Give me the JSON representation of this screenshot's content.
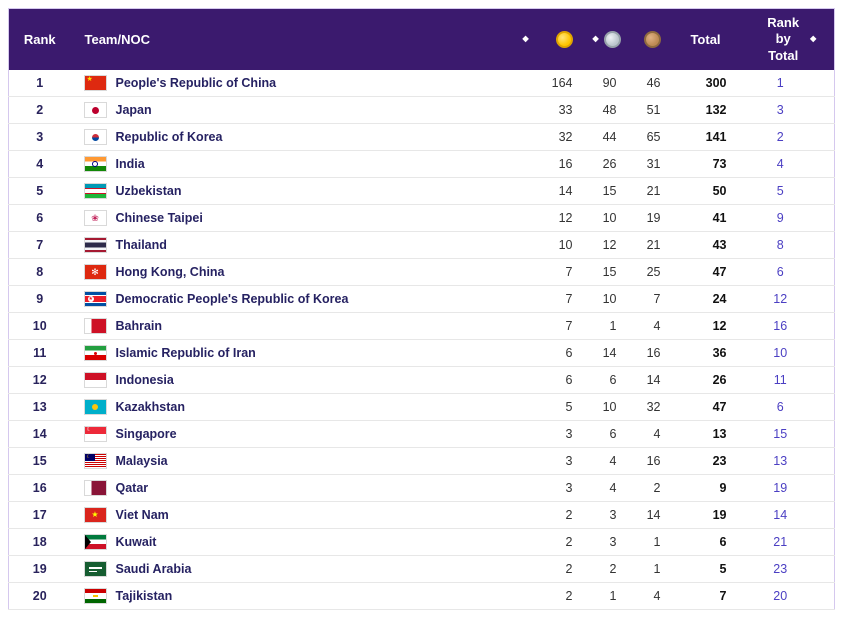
{
  "colors": {
    "header_bg": "#3b1a6e",
    "team_text": "#262262",
    "rank_by_total_text": "#4b3fc3",
    "gold": "#ffc400",
    "silver": "#bcc6cd",
    "bronze": "#bd8a54"
  },
  "table": {
    "header": {
      "rank": "Rank",
      "team": "Team/NOC",
      "total": "Total",
      "rank_by_total": "Rank by Total",
      "sort_icon": "◆",
      "icons": {
        "gold": "gold-medal-icon",
        "silver": "silver-medal-icon",
        "bronze": "bronze-medal-icon"
      }
    },
    "rows": [
      {
        "rank": 1,
        "flag": "cn",
        "team": "People's Republic of China",
        "gold": 164,
        "silver": 90,
        "bronze": 46,
        "total": 300,
        "rank_by_total": 1
      },
      {
        "rank": 2,
        "flag": "jp",
        "team": "Japan",
        "gold": 33,
        "silver": 48,
        "bronze": 51,
        "total": 132,
        "rank_by_total": 3
      },
      {
        "rank": 3,
        "flag": "kr",
        "team": "Republic of Korea",
        "gold": 32,
        "silver": 44,
        "bronze": 65,
        "total": 141,
        "rank_by_total": 2
      },
      {
        "rank": 4,
        "flag": "in",
        "team": "India",
        "gold": 16,
        "silver": 26,
        "bronze": 31,
        "total": 73,
        "rank_by_total": 4
      },
      {
        "rank": 5,
        "flag": "uz",
        "team": "Uzbekistan",
        "gold": 14,
        "silver": 15,
        "bronze": 21,
        "total": 50,
        "rank_by_total": 5
      },
      {
        "rank": 6,
        "flag": "tpe",
        "team": "Chinese Taipei",
        "gold": 12,
        "silver": 10,
        "bronze": 19,
        "total": 41,
        "rank_by_total": 9
      },
      {
        "rank": 7,
        "flag": "th",
        "team": "Thailand",
        "gold": 10,
        "silver": 12,
        "bronze": 21,
        "total": 43,
        "rank_by_total": 8
      },
      {
        "rank": 8,
        "flag": "hk",
        "team": "Hong Kong, China",
        "gold": 7,
        "silver": 15,
        "bronze": 25,
        "total": 47,
        "rank_by_total": 6
      },
      {
        "rank": 9,
        "flag": "kp",
        "team": "Democratic People's Republic of Korea",
        "gold": 7,
        "silver": 10,
        "bronze": 7,
        "total": 24,
        "rank_by_total": 12
      },
      {
        "rank": 10,
        "flag": "bh",
        "team": "Bahrain",
        "gold": 7,
        "silver": 1,
        "bronze": 4,
        "total": 12,
        "rank_by_total": 16
      },
      {
        "rank": 11,
        "flag": "ir",
        "team": "Islamic Republic of Iran",
        "gold": 6,
        "silver": 14,
        "bronze": 16,
        "total": 36,
        "rank_by_total": 10
      },
      {
        "rank": 12,
        "flag": "id",
        "team": "Indonesia",
        "gold": 6,
        "silver": 6,
        "bronze": 14,
        "total": 26,
        "rank_by_total": 11
      },
      {
        "rank": 13,
        "flag": "kz",
        "team": "Kazakhstan",
        "gold": 5,
        "silver": 10,
        "bronze": 32,
        "total": 47,
        "rank_by_total": 6
      },
      {
        "rank": 14,
        "flag": "sg",
        "team": "Singapore",
        "gold": 3,
        "silver": 6,
        "bronze": 4,
        "total": 13,
        "rank_by_total": 15
      },
      {
        "rank": 15,
        "flag": "my",
        "team": "Malaysia",
        "gold": 3,
        "silver": 4,
        "bronze": 16,
        "total": 23,
        "rank_by_total": 13
      },
      {
        "rank": 16,
        "flag": "qa",
        "team": "Qatar",
        "gold": 3,
        "silver": 4,
        "bronze": 2,
        "total": 9,
        "rank_by_total": 19
      },
      {
        "rank": 17,
        "flag": "vn",
        "team": "Viet Nam",
        "gold": 2,
        "silver": 3,
        "bronze": 14,
        "total": 19,
        "rank_by_total": 14
      },
      {
        "rank": 18,
        "flag": "kw",
        "team": "Kuwait",
        "gold": 2,
        "silver": 3,
        "bronze": 1,
        "total": 6,
        "rank_by_total": 21
      },
      {
        "rank": 19,
        "flag": "sa",
        "team": "Saudi Arabia",
        "gold": 2,
        "silver": 2,
        "bronze": 1,
        "total": 5,
        "rank_by_total": 23
      },
      {
        "rank": 20,
        "flag": "tj",
        "team": "Tajikistan",
        "gold": 2,
        "silver": 1,
        "bronze": 4,
        "total": 7,
        "rank_by_total": 20
      }
    ]
  }
}
